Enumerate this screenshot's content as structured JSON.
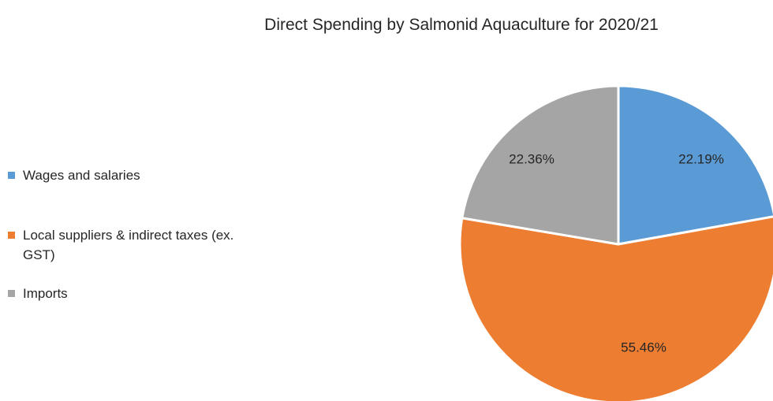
{
  "chart_data": {
    "type": "pie",
    "title": "Direct Spending by Salmonid Aquaculture for 2020/21",
    "slices": [
      {
        "name": "Wages and salaries",
        "value": 22.19,
        "label": "22.19%",
        "color": "#5B9BD5"
      },
      {
        "name": "Local suppliers & indirect taxes (ex. GST)",
        "value": 55.46,
        "label": "55.46%",
        "color": "#ED7D31"
      },
      {
        "name": "Imports",
        "value": 22.36,
        "label": "22.36%",
        "color": "#A5A5A5"
      }
    ],
    "legend_position": "left",
    "start_angle": "12 o'clock",
    "direction": "clockwise"
  }
}
